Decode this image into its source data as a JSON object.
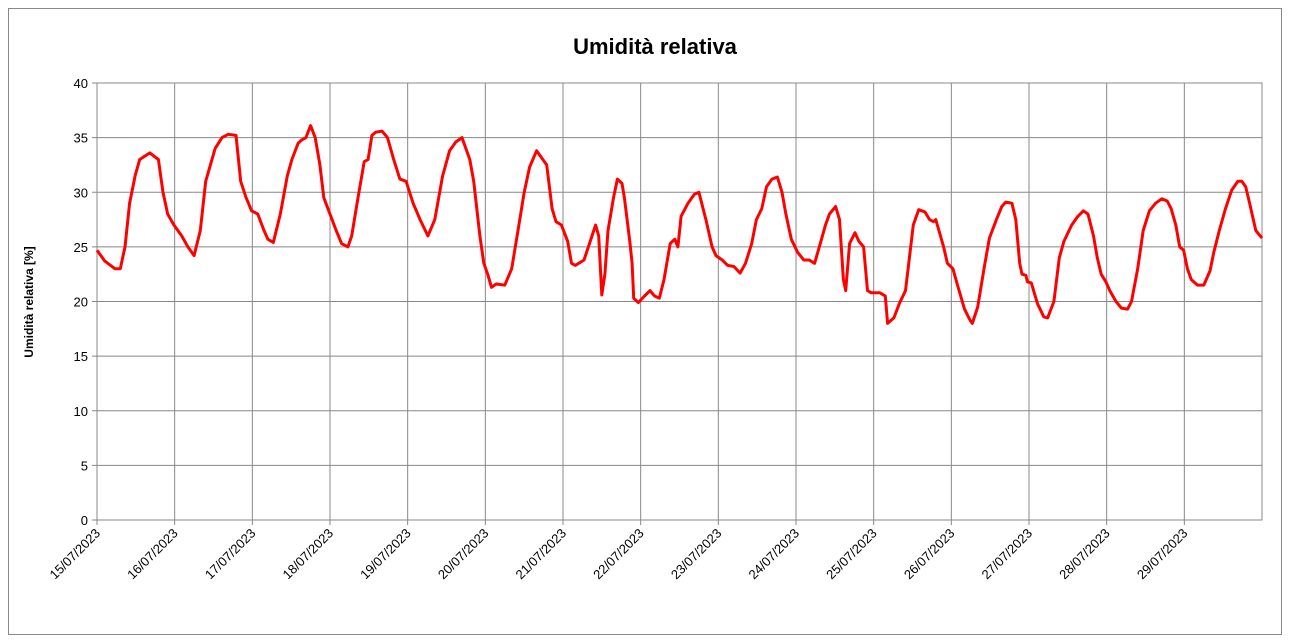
{
  "chart_data": {
    "type": "line",
    "title": "Umidità relativa",
    "y_label": "Umidità relativa [%]",
    "xlim": [
      0,
      15
    ],
    "xticks": [
      {
        "value": 0,
        "label": "15/07/2023"
      },
      {
        "value": 1,
        "label": "16/07/2023"
      },
      {
        "value": 2,
        "label": "17/07/2023"
      },
      {
        "value": 3,
        "label": "18/07/2023"
      },
      {
        "value": 4,
        "label": "19/07/2023"
      },
      {
        "value": 5,
        "label": "20/07/2023"
      },
      {
        "value": 6,
        "label": "21/07/2023"
      },
      {
        "value": 7,
        "label": "22/07/2023"
      },
      {
        "value": 8,
        "label": "23/07/2023"
      },
      {
        "value": 9,
        "label": "24/07/2023"
      },
      {
        "value": 10,
        "label": "25/07/2023"
      },
      {
        "value": 11,
        "label": "26/07/2023"
      },
      {
        "value": 12,
        "label": "27/07/2023"
      },
      {
        "value": 13,
        "label": "28/07/2023"
      },
      {
        "value": 14,
        "label": "29/07/2023"
      }
    ],
    "ylim": [
      0,
      40
    ],
    "yticks": [
      0,
      5,
      10,
      15,
      20,
      25,
      30,
      35,
      40
    ],
    "grid": true,
    "x": [
      0,
      0.1,
      0.23,
      0.3,
      0.36,
      0.42,
      0.49,
      0.55,
      0.68,
      0.79,
      0.85,
      0.91,
      0.99,
      1.09,
      1.17,
      1.25,
      1.33,
      1.4,
      1.52,
      1.61,
      1.69,
      1.79,
      1.85,
      1.92,
      1.99,
      2.07,
      2.15,
      2.2,
      2.27,
      2.36,
      2.45,
      2.51,
      2.59,
      2.64,
      2.69,
      2.75,
      2.81,
      2.87,
      2.92,
      3.0,
      3.08,
      3.15,
      3.23,
      3.28,
      3.36,
      3.44,
      3.49,
      3.54,
      3.59,
      3.67,
      3.74,
      3.82,
      3.9,
      3.98,
      4.07,
      4.16,
      4.26,
      4.35,
      4.45,
      4.54,
      4.62,
      4.7,
      4.8,
      4.85,
      4.93,
      4.98,
      5.03,
      5.08,
      5.14,
      5.25,
      5.34,
      5.42,
      5.5,
      5.57,
      5.66,
      5.71,
      5.79,
      5.86,
      5.91,
      5.98,
      6.06,
      6.11,
      6.16,
      6.27,
      6.35,
      6.42,
      6.46,
      6.5,
      6.54,
      6.58,
      6.65,
      6.7,
      6.76,
      6.79,
      6.86,
      6.89,
      6.91,
      6.97,
      7.05,
      7.12,
      7.18,
      7.24,
      7.3,
      7.38,
      7.44,
      7.48,
      7.52,
      7.61,
      7.69,
      7.75,
      7.84,
      7.92,
      7.97,
      8.05,
      8.12,
      8.2,
      8.28,
      8.35,
      8.43,
      8.49,
      8.56,
      8.62,
      8.69,
      8.76,
      8.82,
      8.87,
      8.94,
      9.02,
      9.1,
      9.17,
      9.24,
      9.3,
      9.38,
      9.43,
      9.51,
      9.56,
      9.61,
      9.64,
      9.69,
      9.76,
      9.81,
      9.87,
      9.92,
      9.97,
      10.08,
      10.15,
      10.18,
      10.26,
      10.33,
      10.41,
      10.46,
      10.51,
      10.58,
      10.66,
      10.72,
      10.77,
      10.8,
      10.9,
      10.95,
      11.02,
      11.08,
      11.17,
      11.24,
      11.27,
      11.34,
      11.42,
      11.49,
      11.58,
      11.65,
      11.7,
      11.78,
      11.83,
      11.88,
      11.91,
      11.96,
      11.98,
      12.03,
      12.11,
      12.19,
      12.24,
      12.32,
      12.39,
      12.45,
      12.55,
      12.63,
      12.7,
      12.76,
      12.83,
      12.88,
      12.93,
      12.99,
      13.04,
      13.12,
      13.19,
      13.27,
      13.32,
      13.4,
      13.47,
      13.55,
      13.63,
      13.71,
      13.78,
      13.83,
      13.89,
      13.94,
      13.99,
      14.04,
      14.09,
      14.17,
      14.25,
      14.33,
      14.38,
      14.45,
      14.53,
      14.61,
      14.69,
      14.74,
      14.79,
      14.84,
      14.92,
      15.0
    ],
    "series": [
      {
        "color": "#ff0000",
        "values": [
          24.7,
          23.7,
          23.0,
          23.0,
          25,
          29,
          31.5,
          33,
          33.6,
          33,
          30,
          28,
          27,
          26,
          25,
          24.2,
          26.5,
          31,
          34,
          35,
          35.3,
          35.2,
          31,
          29.5,
          28.3,
          28,
          26.5,
          25.7,
          25.4,
          28,
          31.5,
          33,
          34.5,
          34.8,
          35,
          36.1,
          35,
          32.5,
          29.5,
          28,
          26.5,
          25.3,
          25,
          26,
          29.5,
          32.8,
          33,
          35.2,
          35.5,
          35.6,
          35,
          33,
          31.2,
          31,
          29,
          27.5,
          26,
          27.5,
          31.5,
          33.8,
          34.6,
          35,
          33,
          31,
          26,
          23.5,
          22.5,
          21.3,
          21.6,
          21.5,
          23,
          26.5,
          30,
          32.3,
          33.8,
          33.3,
          32.5,
          28.5,
          27.3,
          27,
          25.5,
          23.5,
          23.3,
          23.8,
          25.5,
          27,
          26,
          20.6,
          22.5,
          26.5,
          29.5,
          31.2,
          30.8,
          29.5,
          25.5,
          23.5,
          20.3,
          19.9,
          20.5,
          21,
          20.5,
          20.3,
          22,
          25.3,
          25.7,
          25,
          27.8,
          29,
          29.8,
          30,
          27.5,
          25,
          24.2,
          23.8,
          23.3,
          23.2,
          22.6,
          23.5,
          25.3,
          27.5,
          28.5,
          30.5,
          31.2,
          31.4,
          30,
          28,
          25.7,
          24.5,
          23.8,
          23.8,
          23.5,
          25,
          27,
          28,
          28.7,
          27.5,
          22,
          21,
          25.3,
          26.3,
          25.5,
          25,
          21,
          20.8,
          20.8,
          20.5,
          18,
          18.5,
          19.8,
          21,
          24,
          27,
          28.4,
          28.2,
          27.5,
          27.3,
          27.5,
          25,
          23.5,
          23,
          21.5,
          19.3,
          18.3,
          18,
          19.5,
          23,
          25.8,
          27.5,
          28.7,
          29.1,
          29,
          27.5,
          23.5,
          22.5,
          22.4,
          21.8,
          21.7,
          19.8,
          18.6,
          18.5,
          20,
          24,
          25.5,
          27,
          27.8,
          28.3,
          28,
          26,
          24,
          22.5,
          21.8,
          21,
          20,
          19.4,
          19.3,
          20,
          23,
          26.5,
          28.3,
          29,
          29.4,
          29.2,
          28.5,
          27,
          25,
          24.7,
          23,
          22,
          21.5,
          21.5,
          22.8,
          24.5,
          26.5,
          28.5,
          30.2,
          31,
          31,
          30.5,
          29,
          26.5,
          25.8
        ]
      }
    ]
  }
}
